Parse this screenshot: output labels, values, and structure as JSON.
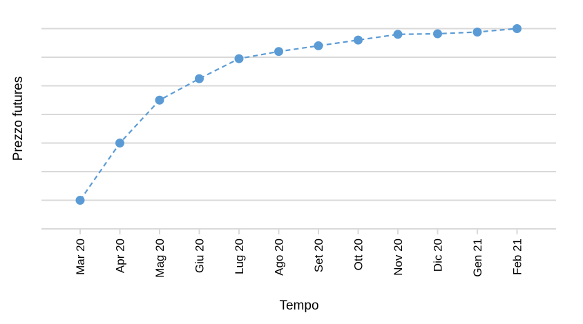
{
  "chart_data": {
    "type": "line",
    "title": "",
    "xlabel": "Tempo",
    "ylabel": "Prezzo futures",
    "categories": [
      "Mar 20",
      "Apr 20",
      "Mag 20",
      "Giu 20",
      "Lug 20",
      "Ago 20",
      "Set 20",
      "Ott 20",
      "Nov 20",
      "Dic 20",
      "Gen 21",
      "Feb 21"
    ],
    "series": [
      {
        "values": [
          1.0,
          3.0,
          4.5,
          5.25,
          5.95,
          6.2,
          6.4,
          6.6,
          6.8,
          6.82,
          6.88,
          7.0
        ],
        "color": "#5b9bd5",
        "line_style": "dashed",
        "marker": "circle"
      }
    ],
    "ylim": [
      -0.0,
      7.2
    ],
    "ytick_step": 1,
    "y_tick_labels_shown": false,
    "grid": "horizontal",
    "legend": "none"
  }
}
